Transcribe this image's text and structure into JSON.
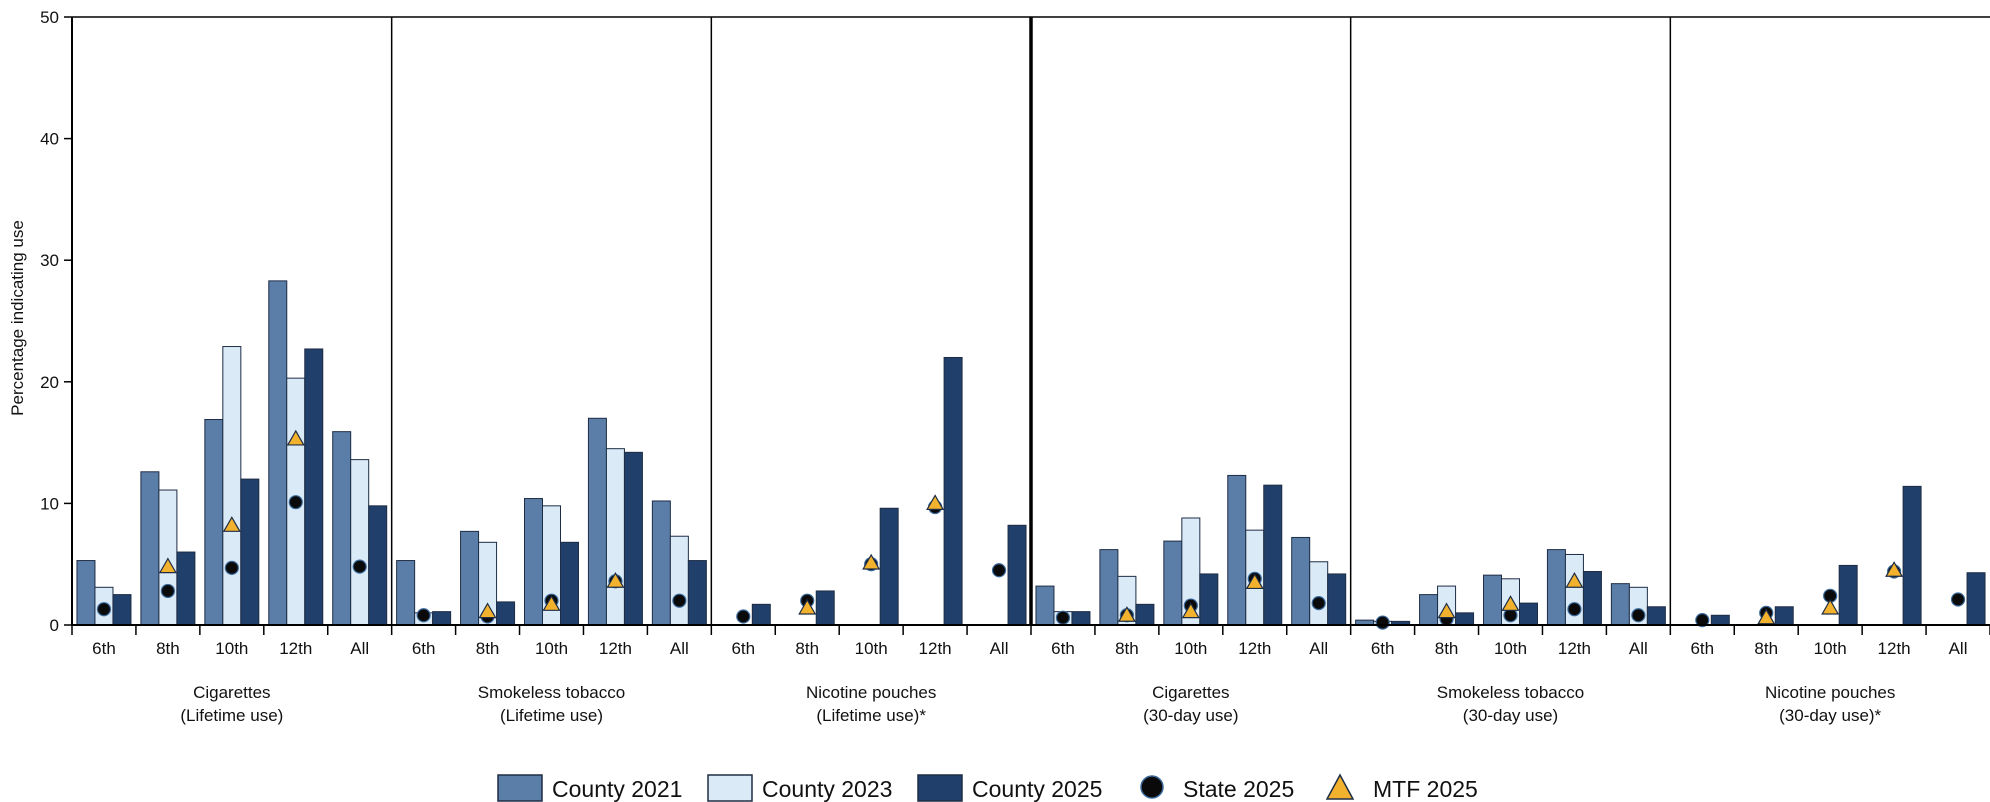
{
  "chart_data": {
    "type": "bar",
    "ylabel": "Percentage indicating use",
    "ylim": [
      0,
      50
    ],
    "yticks": [
      0,
      10,
      20,
      30,
      40,
      50
    ],
    "grid": false,
    "legend_position": "bottom-center",
    "grade_labels": [
      "6th",
      "8th",
      "10th",
      "12th",
      "All"
    ],
    "groups": [
      {
        "line1": "Cigarettes",
        "line2": "(Lifetime use)"
      },
      {
        "line1": "Smokeless tobacco",
        "line2": "(Lifetime use)"
      },
      {
        "line1": "Nicotine pouches",
        "line2": "(Lifetime use)*"
      },
      {
        "line1": "Cigarettes",
        "line2": "(30-day use)"
      },
      {
        "line1": "Smokeless tobacco",
        "line2": "(30-day use)"
      },
      {
        "line1": "Nicotine pouches",
        "line2": "(30-day use)*"
      }
    ],
    "bar_series": [
      {
        "name": "County 2021",
        "color": "#5b7ea8",
        "values": [
          5.3,
          12.6,
          16.9,
          28.3,
          15.9,
          5.3,
          7.7,
          10.4,
          17.0,
          10.2,
          null,
          null,
          null,
          null,
          null,
          3.2,
          6.2,
          6.9,
          12.3,
          7.2,
          0.4,
          2.5,
          4.1,
          6.2,
          3.4,
          null,
          null,
          null,
          null,
          null
        ]
      },
      {
        "name": "County 2023",
        "color": "#dbeaf7",
        "values": [
          3.1,
          11.1,
          22.9,
          20.3,
          13.6,
          1.0,
          6.8,
          9.8,
          14.5,
          7.3,
          null,
          null,
          null,
          null,
          null,
          1.1,
          4.0,
          8.8,
          7.8,
          5.2,
          0.3,
          3.2,
          3.8,
          5.8,
          3.1,
          null,
          null,
          null,
          null,
          null
        ]
      },
      {
        "name": "County 2025",
        "color": "#213f6b",
        "values": [
          2.5,
          6.0,
          12.0,
          22.7,
          9.8,
          1.1,
          1.9,
          6.8,
          14.2,
          5.3,
          1.7,
          2.8,
          9.6,
          22.0,
          8.2,
          1.1,
          1.7,
          4.2,
          11.5,
          4.2,
          0.3,
          1.0,
          1.8,
          4.4,
          1.5,
          0.8,
          1.5,
          4.9,
          11.4,
          4.3
        ]
      }
    ],
    "marker_series": [
      {
        "name": "State 2025",
        "color": "#0a0a0a",
        "shape": "circle",
        "values": [
          1.3,
          2.8,
          4.7,
          10.1,
          4.8,
          0.8,
          0.7,
          2.0,
          3.6,
          2.0,
          0.7,
          2.0,
          5.0,
          9.7,
          4.5,
          0.6,
          0.8,
          1.6,
          3.8,
          1.8,
          0.2,
          0.5,
          0.8,
          1.3,
          0.8,
          0.4,
          1.0,
          2.4,
          4.4,
          2.1
        ]
      },
      {
        "name": "MTF 2025",
        "color": "#f2b22e",
        "shape": "triangle",
        "values": [
          null,
          4.8,
          8.2,
          15.3,
          null,
          null,
          1.1,
          1.7,
          3.6,
          null,
          null,
          1.4,
          5.1,
          10.0,
          null,
          null,
          0.8,
          1.1,
          3.5,
          null,
          null,
          1.1,
          1.7,
          3.6,
          null,
          null,
          0.6,
          1.4,
          4.5,
          null
        ]
      }
    ]
  }
}
